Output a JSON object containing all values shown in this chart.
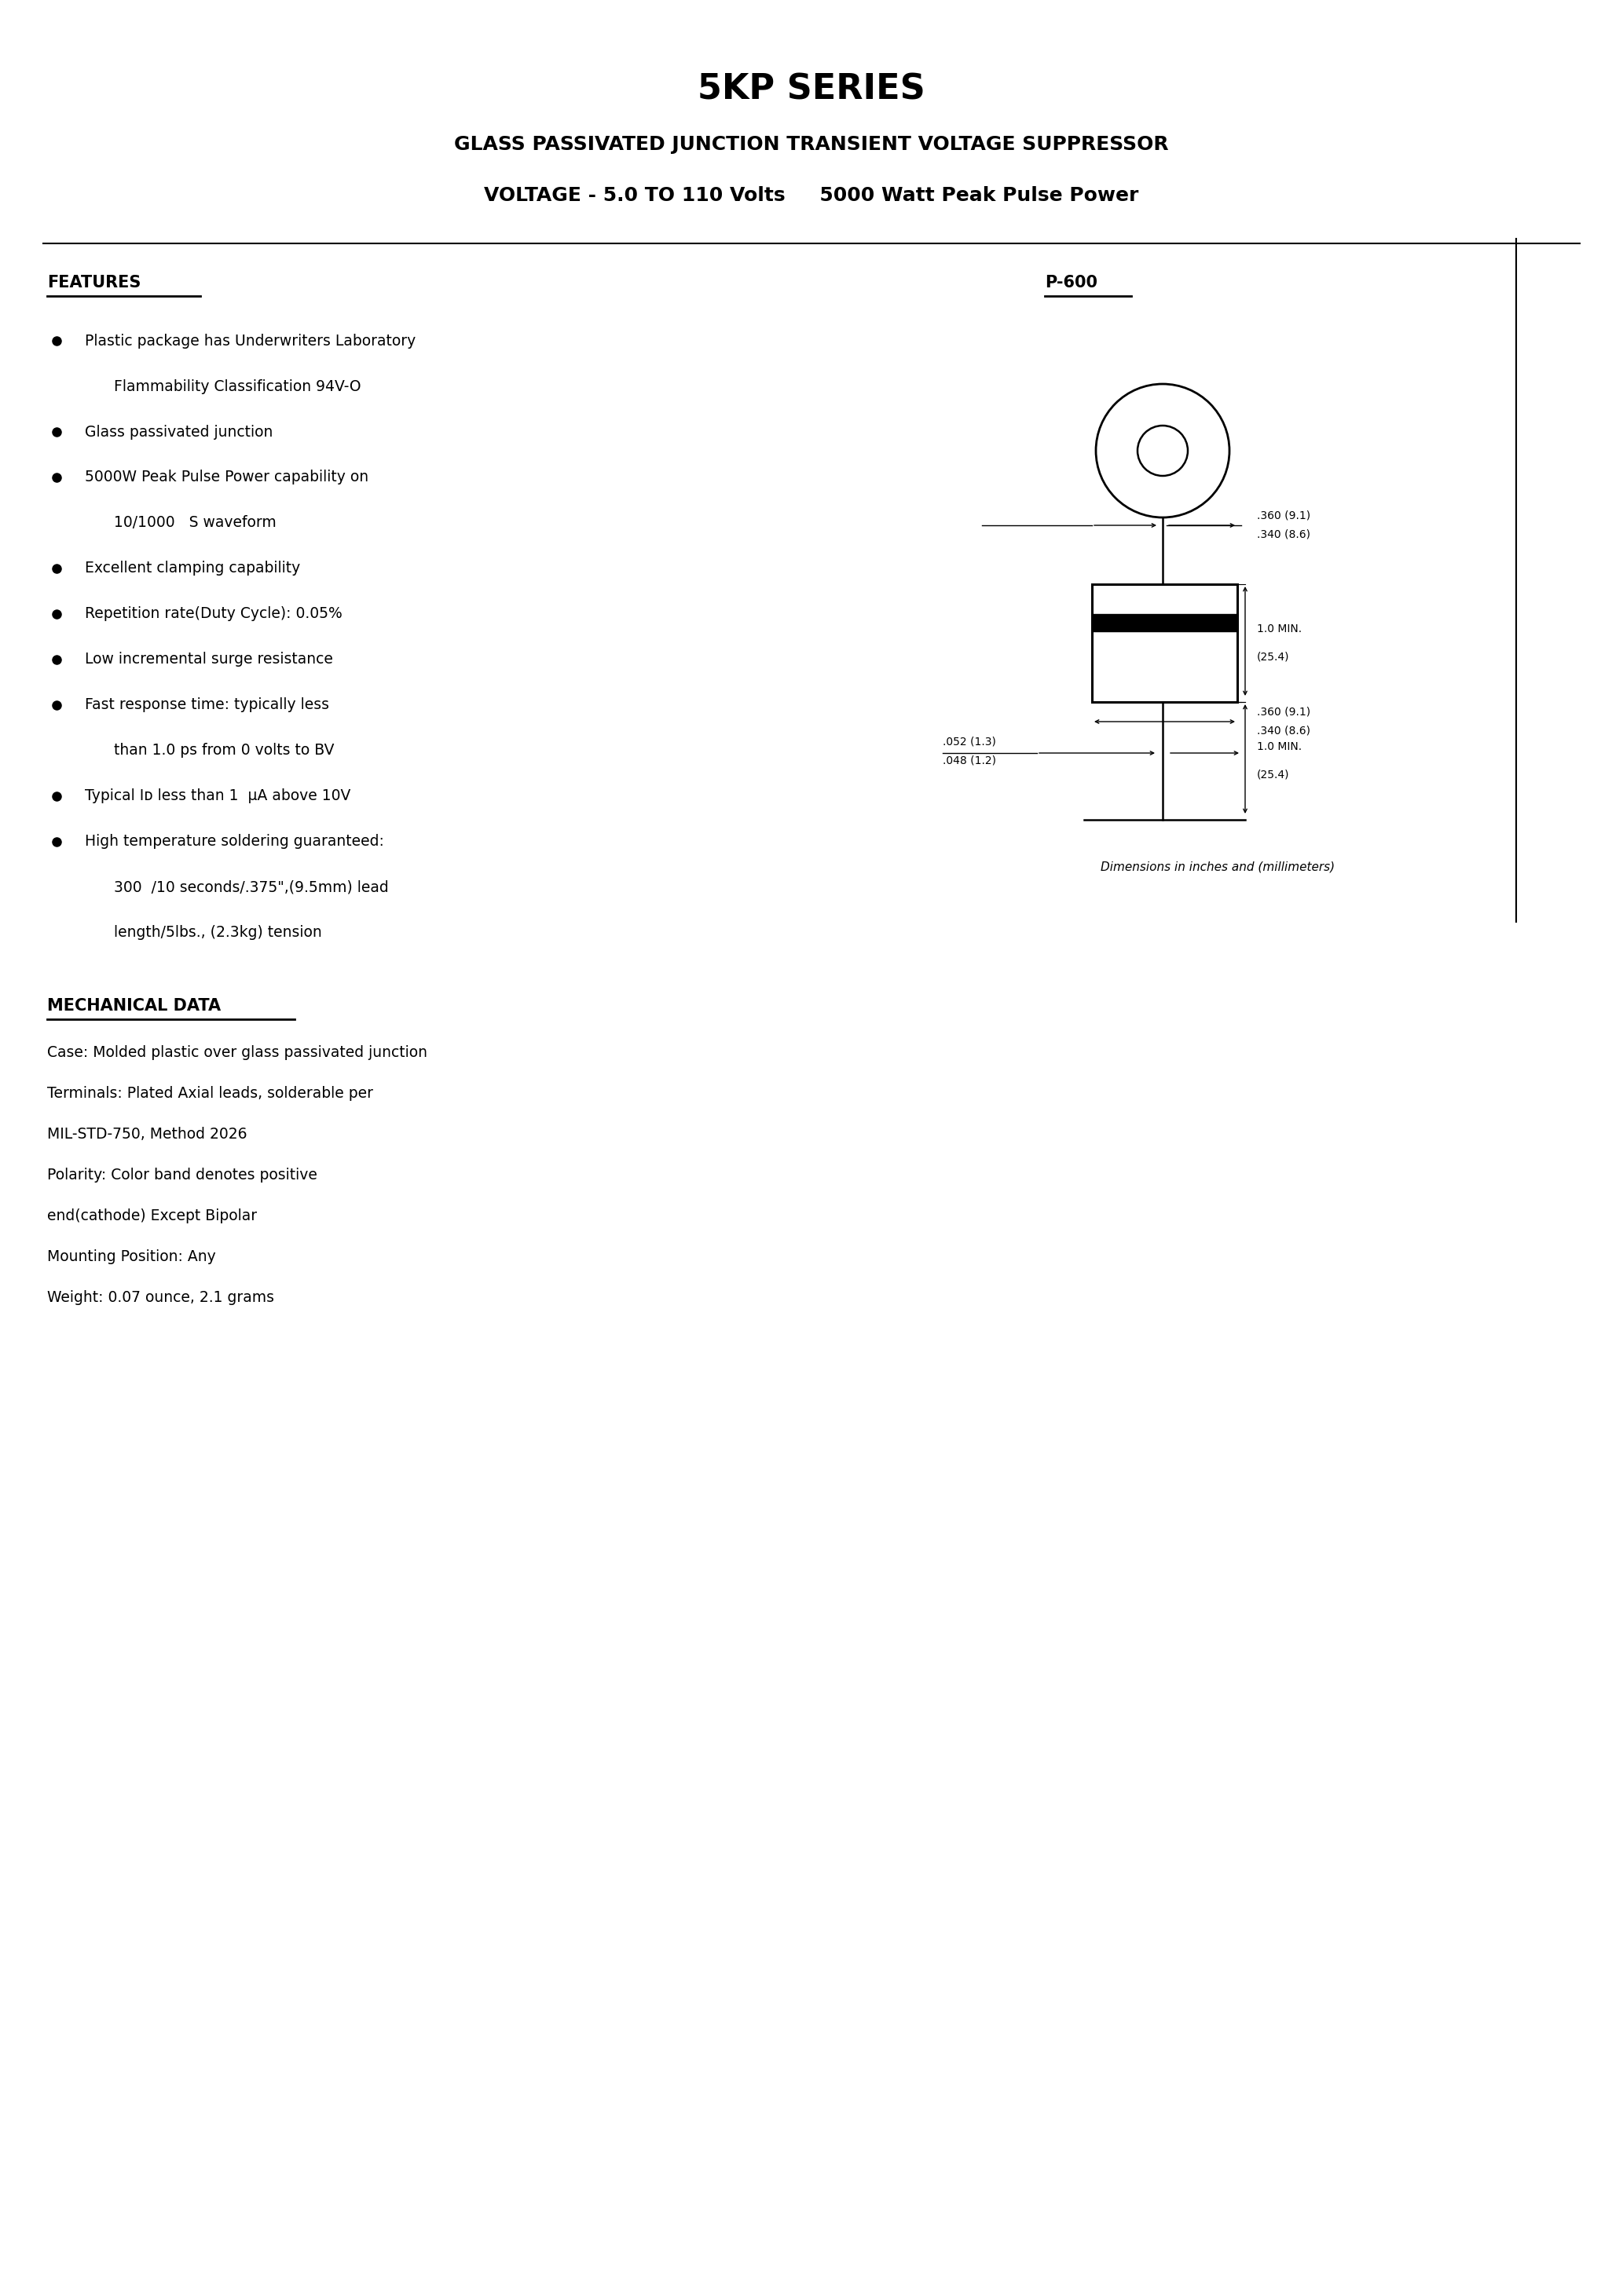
{
  "title": "5KP SERIES",
  "subtitle1": "GLASS PASSIVATED JUNCTION TRANSIENT VOLTAGE SUPPRESSOR",
  "subtitle2": "VOLTAGE - 5.0 TO 110 Volts     5000 Watt Peak Pulse Power",
  "features_header": "FEATURES",
  "package_label": "P-600",
  "feature_lines": [
    [
      true,
      "Plastic package has Underwriters Laboratory"
    ],
    [
      false,
      "Flammability Classification 94V-O"
    ],
    [
      true,
      "Glass passivated junction"
    ],
    [
      true,
      "5000W Peak Pulse Power capability on"
    ],
    [
      false,
      "10/1000   S waveform"
    ],
    [
      true,
      "Excellent clamping capability"
    ],
    [
      true,
      "Repetition rate(Duty Cycle): 0.05%"
    ],
    [
      true,
      "Low incremental surge resistance"
    ],
    [
      true,
      "Fast response time: typically less"
    ],
    [
      false,
      "than 1.0 ps from 0 volts to BV"
    ],
    [
      true,
      "Typical Iᴅ less than 1  µA above 10V"
    ],
    [
      true,
      "High temperature soldering guaranteed:"
    ],
    [
      false,
      "300  /10 seconds/.375\",(9.5mm) lead"
    ],
    [
      false,
      "length/5lbs., (2.3kg) tension"
    ]
  ],
  "mech_header": "MECHANICAL DATA",
  "mech_lines": [
    "Case: Molded plastic over glass passivated junction",
    "Terminals: Plated Axial leads, solderable per",
    "MIL-STD-750, Method 2026",
    "Polarity: Color band denotes positive",
    "end(cathode) Except Bipolar",
    "Mounting Position: Any",
    "Weight: 0.07 ounce, 2.1 grams"
  ],
  "dim_note": "Dimensions in inches and (millimeters)",
  "bg_color": "#ffffff",
  "text_color": "#000000"
}
